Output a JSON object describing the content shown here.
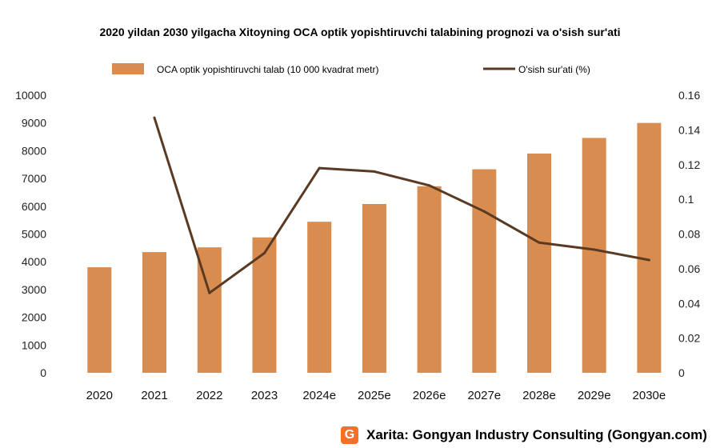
{
  "chart_data": {
    "type": "bar",
    "title": "2020 yildan 2030 yilgacha Xitoyning OCA optik yopishtiruvchi talabining prognozi va o'sish sur'ati",
    "categories": [
      "2020",
      "2021",
      "2022",
      "2023",
      "2024e",
      "2025e",
      "2026e",
      "2027e",
      "2028e",
      "2029e",
      "2030e"
    ],
    "series": [
      {
        "name": "OCA optik yopishtiruvchi talab (10 000 kvadrat metr)",
        "type": "bar",
        "axis": "left",
        "values": [
          3800,
          4350,
          4520,
          4880,
          5440,
          6080,
          6720,
          7330,
          7900,
          8460,
          9000
        ]
      },
      {
        "name": "O'sish sur'ati (%)",
        "type": "line",
        "axis": "right",
        "values": [
          null,
          0.147,
          0.046,
          0.069,
          0.118,
          0.116,
          0.108,
          0.093,
          0.075,
          0.071,
          0.065
        ]
      }
    ],
    "y_left": {
      "min": 0,
      "max": 10000,
      "ticks": [
        0,
        1000,
        2000,
        3000,
        4000,
        5000,
        6000,
        7000,
        8000,
        9000,
        10000
      ]
    },
    "y_right": {
      "min": 0,
      "max": 0.16,
      "ticks": [
        "0",
        "0.02",
        "0.04",
        "0.06",
        "0.08",
        "0.1",
        "0.12",
        "0.14",
        "0.16"
      ]
    },
    "legend_position": "top",
    "grid": false,
    "colors": {
      "bar": "#d98c4f",
      "line": "#5a3a22"
    }
  },
  "source": {
    "logo_letter": "G",
    "text": "Xarita: Gongyan Industry Consulting (Gongyan.com)"
  }
}
